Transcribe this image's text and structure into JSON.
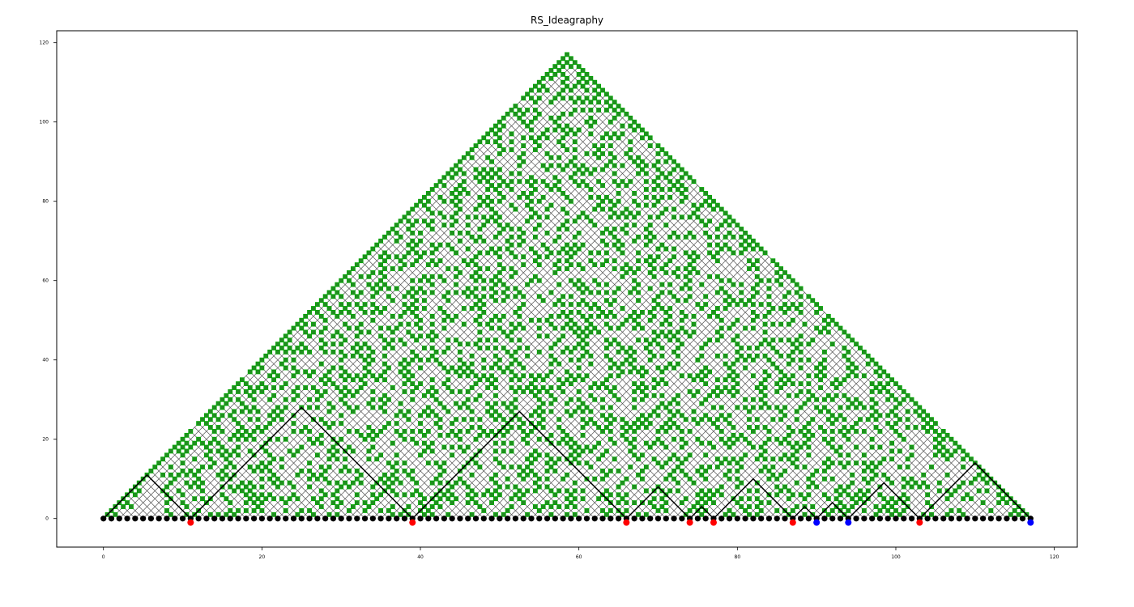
{
  "chart_data": {
    "type": "scatter",
    "title": "RS_Ideagraphy",
    "xlabel": "",
    "ylabel": "",
    "xlim": [
      -5.9,
      122.9
    ],
    "ylim": [
      -7.2,
      123
    ],
    "grid": false,
    "legend": "none",
    "x_ticks": [
      0,
      20,
      40,
      60,
      80,
      100,
      120
    ],
    "y_ticks": [
      0,
      20,
      40,
      60,
      80,
      100,
      120
    ],
    "n_positions": 118,
    "baseline_nodes": {
      "y": 0,
      "x_start": 0,
      "x_end": 117,
      "color": "#000000"
    },
    "red_markers": {
      "color": "#ff0000",
      "y": -1,
      "x": [
        11,
        39,
        66,
        74,
        77,
        87,
        103
      ]
    },
    "blue_markers": {
      "color": "#0000ff",
      "y": -1,
      "x": [
        90,
        94,
        117
      ]
    },
    "arch_path": {
      "color": "#000000",
      "points": [
        [
          0,
          0
        ],
        [
          5.5,
          11
        ],
        [
          11,
          0
        ],
        [
          25,
          28
        ],
        [
          39,
          0
        ],
        [
          52.5,
          27
        ],
        [
          66,
          0
        ],
        [
          70,
          8
        ],
        [
          74,
          0
        ],
        [
          75.5,
          3
        ],
        [
          77,
          0
        ],
        [
          82,
          10
        ],
        [
          87,
          0
        ],
        [
          88.5,
          3
        ],
        [
          90,
          0
        ],
        [
          92,
          4
        ],
        [
          94,
          0
        ],
        [
          98.5,
          9
        ],
        [
          103,
          0
        ],
        [
          110,
          14
        ],
        [
          117,
          0
        ]
      ]
    },
    "triangle": {
      "apex": [
        58.5,
        117
      ],
      "base": [
        0,
        117
      ],
      "line_color": "#555555"
    },
    "green_node_color": "#228b22",
    "green_node_edge": "#00aa00"
  }
}
